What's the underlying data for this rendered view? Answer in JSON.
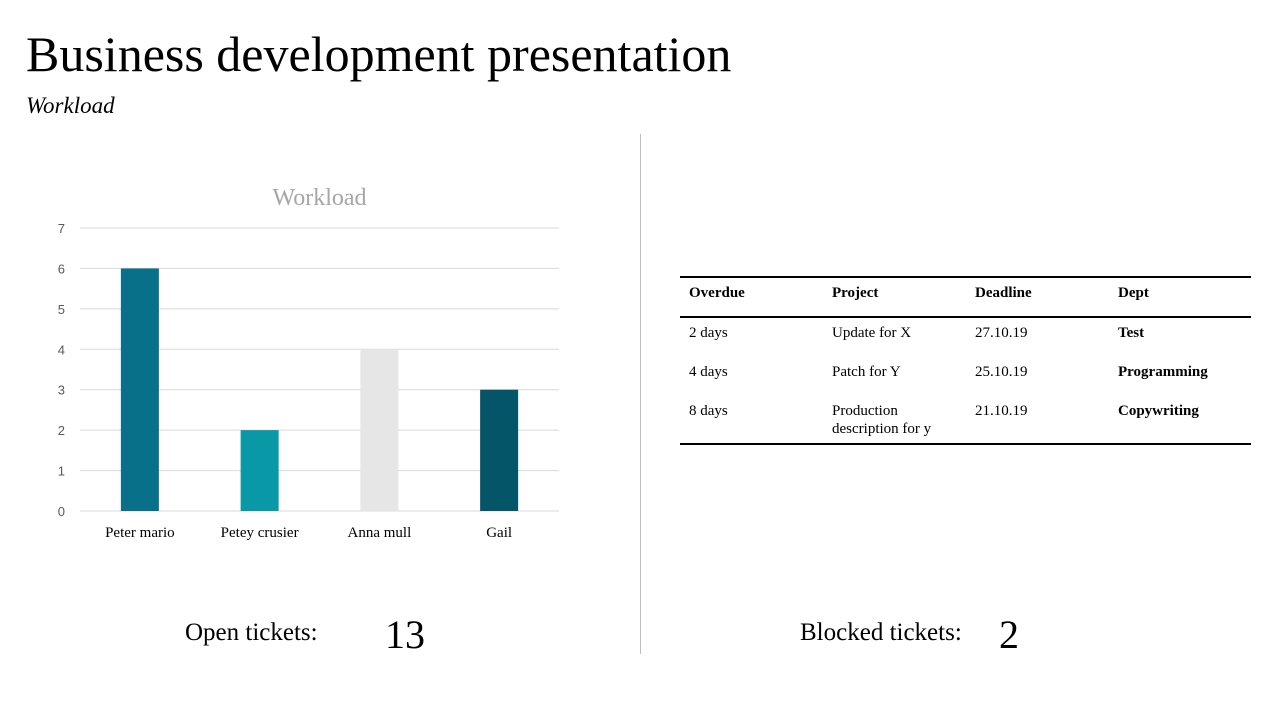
{
  "slide": {
    "title": "Business development presentation",
    "subtitle": "Workload"
  },
  "chart_data": {
    "type": "bar",
    "title": "Workload",
    "categories": [
      "Peter mario",
      "Petey crusier",
      "Anna mull",
      "Gail"
    ],
    "values": [
      6,
      2,
      4,
      3
    ],
    "colors": [
      "#087189",
      "#0898a6",
      "#e6e6e6",
      "#055569"
    ],
    "ylim": [
      0,
      7
    ],
    "yticks": [
      0,
      1,
      2,
      3,
      4,
      5,
      6,
      7
    ],
    "grid": true,
    "xlabel": "",
    "ylabel": ""
  },
  "table": {
    "headers": [
      "Overdue",
      "Project",
      "Deadline",
      "Dept"
    ],
    "rows": [
      [
        "2 days",
        "Update for X",
        "27.10.19",
        "Test"
      ],
      [
        "4 days",
        "Patch for Y",
        "25.10.19",
        "Programming"
      ],
      [
        "8 days",
        "Production description for y",
        "21.10.19",
        "Copywriting"
      ]
    ]
  },
  "kpis": {
    "open_label": "Open tickets:",
    "open_value": "13",
    "blocked_label": "Blocked tickets:",
    "blocked_value": "2"
  }
}
